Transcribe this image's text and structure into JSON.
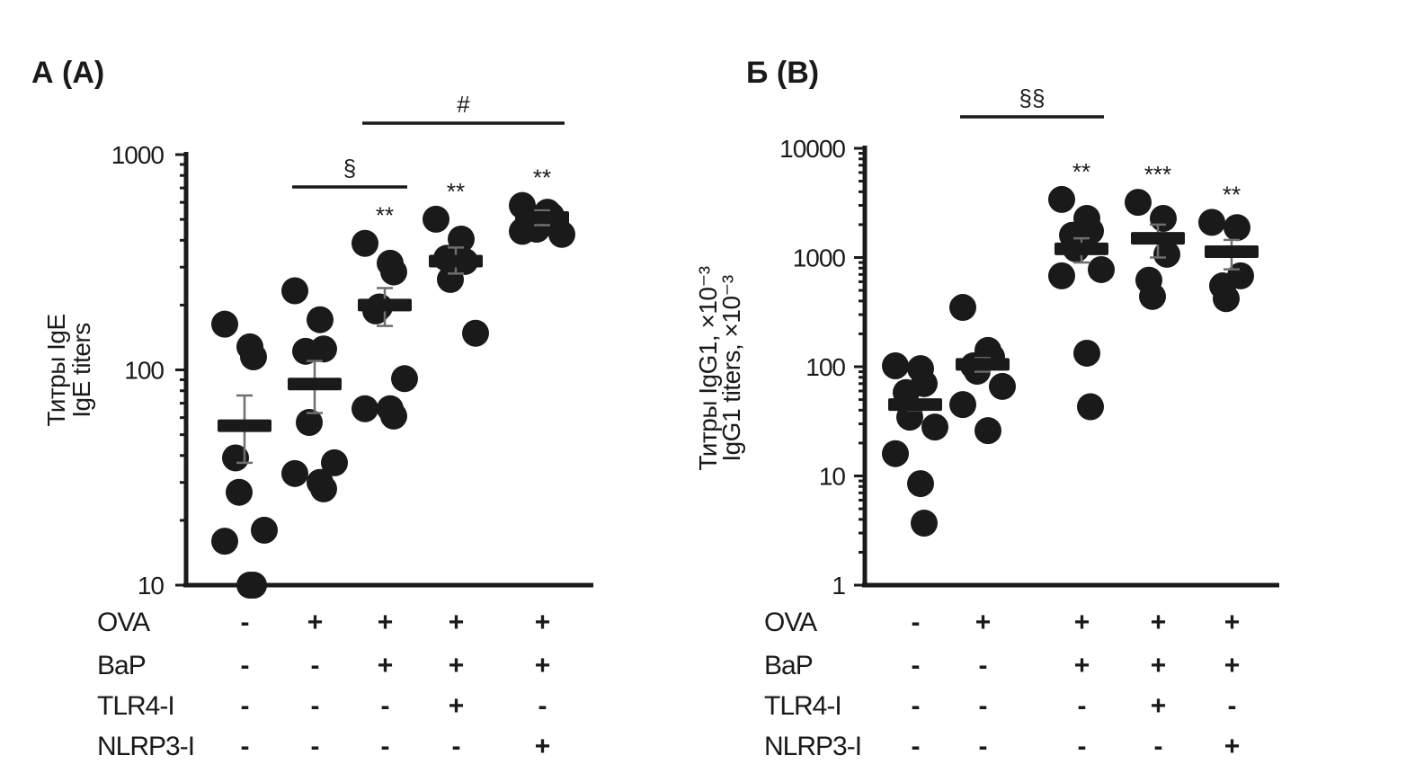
{
  "colors": {
    "ink": "#1a1a1a",
    "error_bar": "#6e6e6e"
  },
  "treatment_rows": [
    "OVA",
    "BaP",
    "TLR4-I",
    "NLRP3-I"
  ],
  "treatment_matrix": [
    [
      "-",
      "+",
      "+",
      "+",
      "+"
    ],
    [
      "-",
      "-",
      "+",
      "+",
      "+"
    ],
    [
      "-",
      "-",
      "-",
      "+",
      "-"
    ],
    [
      "-",
      "-",
      "-",
      "-",
      "+"
    ]
  ],
  "chart_data": [
    {
      "panel_label": "А (A)",
      "type": "scatter",
      "scale": "log",
      "ylabel": [
        "Титры IgE",
        "IgE titers"
      ],
      "ylim": [
        10,
        1000
      ],
      "yticks": [
        "10",
        "100",
        "1000"
      ],
      "ytick_values": [
        10,
        100,
        1000
      ],
      "groups": [
        {
          "points": [
            163,
            128,
            115,
            39,
            27,
            18,
            16,
            10,
            10
          ],
          "mean": 55,
          "err": [
            37,
            76
          ],
          "sig": ""
        },
        {
          "points": [
            233,
            171,
            125,
            122,
            57,
            37,
            33,
            30,
            28
          ],
          "mean": 86,
          "err": [
            63,
            110
          ],
          "sig": ""
        },
        {
          "points": [
            387,
            313,
            285,
            188,
            196,
            91,
            66,
            66,
            61
          ],
          "mean": 200,
          "err": [
            160,
            240
          ],
          "sig": "**"
        },
        {
          "points": [
            501,
            405,
            319,
            330,
            263,
            148
          ],
          "mean": 320,
          "err": [
            280,
            370
          ],
          "sig": "**"
        },
        {
          "points": [
            580,
            540,
            520,
            500,
            450,
            426,
            440
          ],
          "mean": 510,
          "err": [
            470,
            550
          ],
          "sig": "**"
        }
      ],
      "brackets": [
        {
          "from": 1,
          "to": 2,
          "label": "§",
          "level": 0
        },
        {
          "from": 2,
          "to": 4,
          "label": "#",
          "level": 1
        }
      ]
    },
    {
      "panel_label": "Б (B)",
      "type": "scatter",
      "scale": "log",
      "ylabel": [
        "Титры IgG1, ×10⁻³",
        "IgG1 titers, ×10⁻³"
      ],
      "ylim": [
        1,
        10000
      ],
      "yticks": [
        "1",
        "10",
        "100",
        "1000",
        "10000"
      ],
      "ytick_values": [
        1,
        10,
        100,
        1000,
        10000
      ],
      "groups": [
        {
          "points": [
            102,
            96,
            70,
            58,
            34.5,
            28,
            16,
            8.5,
            3.7
          ],
          "mean": 45,
          "err": [
            40,
            50
          ],
          "sig": ""
        },
        {
          "points": [
            349,
            141,
            123,
            102,
            91,
            66,
            45,
            26
          ],
          "mean": 105,
          "err": [
            90,
            120
          ],
          "sig": ""
        },
        {
          "points": [
            3400,
            2280,
            1750,
            1600,
            1200,
            775,
            680,
            133,
            43
          ],
          "mean": 1200,
          "err": [
            900,
            1500
          ],
          "sig": "**"
        },
        {
          "points": [
            3200,
            2280,
            1070,
            620,
            440
          ],
          "mean": 1500,
          "err": [
            1000,
            2000
          ],
          "sig": "***"
        },
        {
          "points": [
            2100,
            1880,
            680,
            550,
            420
          ],
          "mean": 1130,
          "err": [
            780,
            1450
          ],
          "sig": "**"
        }
      ],
      "brackets": [
        {
          "from": 1,
          "to": 2,
          "label": "§§",
          "level": 0
        }
      ]
    }
  ]
}
